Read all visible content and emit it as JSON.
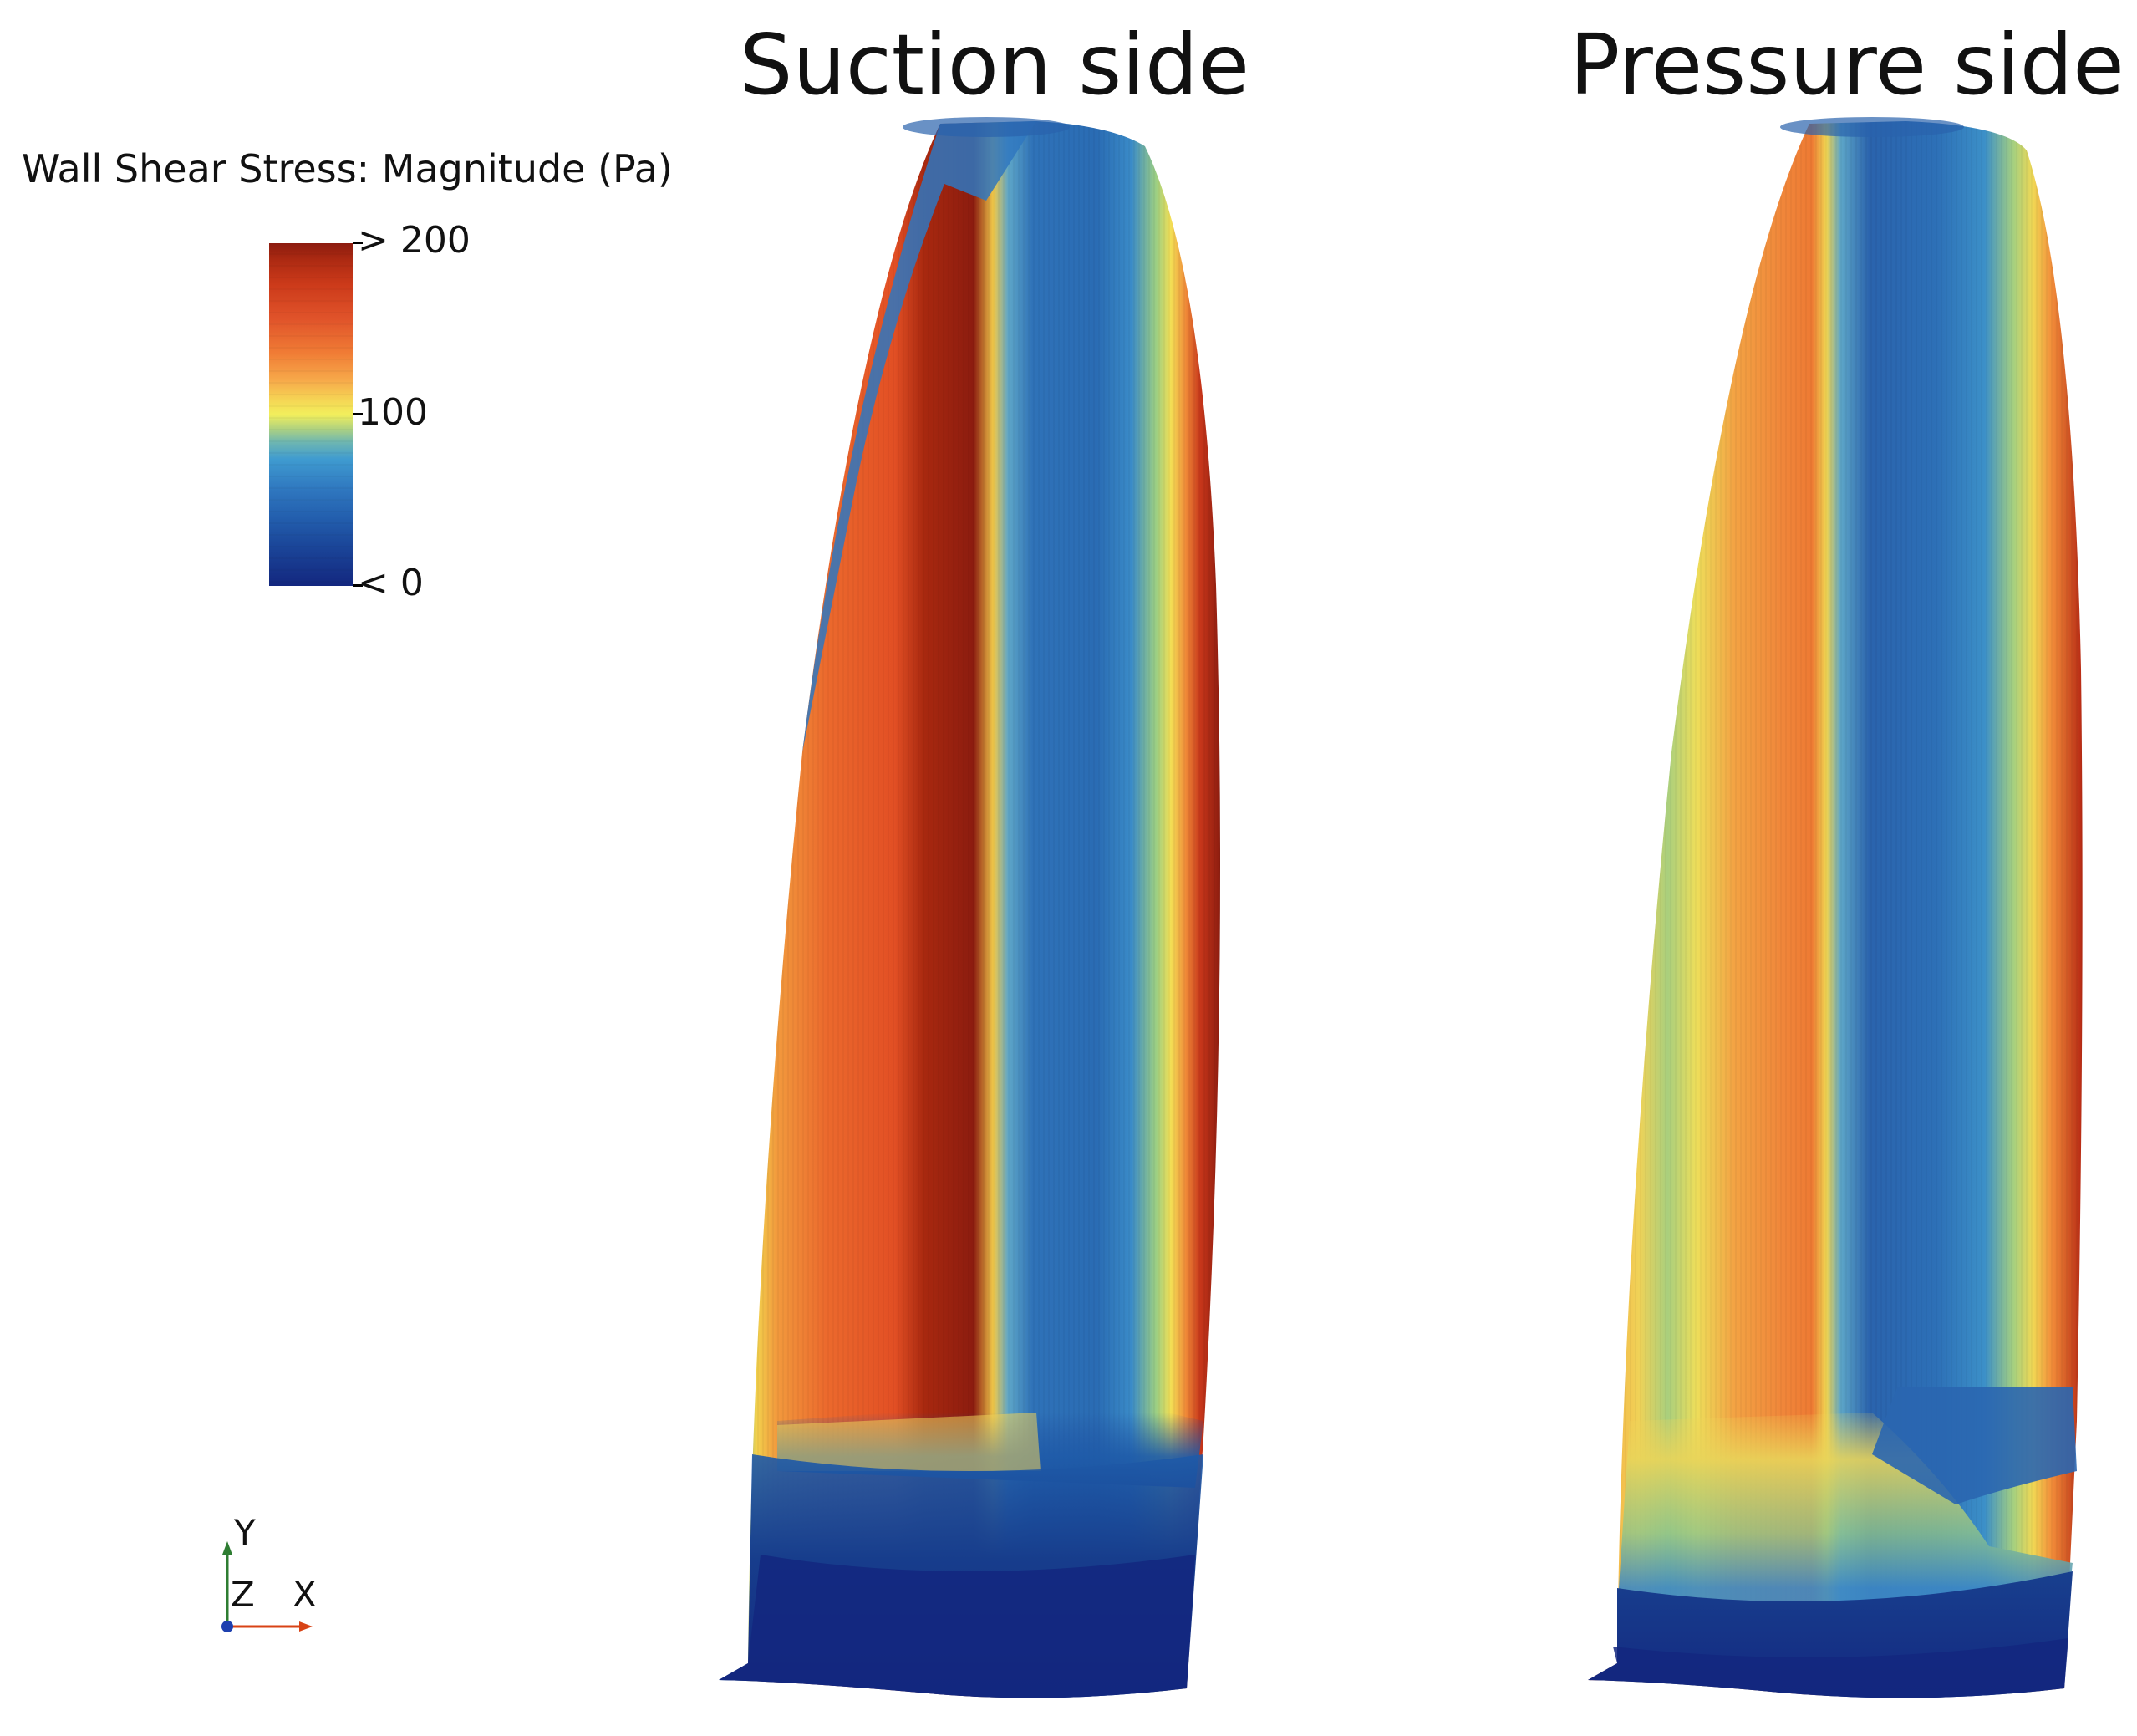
{
  "views": {
    "suction_title": "Suction side",
    "pressure_title": "Pressure side"
  },
  "legend": {
    "title": "Wall Shear Stress: Magnitude (Pa)",
    "max_label": "> 200",
    "mid_label": "100",
    "min_label": "< 0"
  },
  "axes": {
    "y_label": "Y",
    "z_label": "Z",
    "x_label": "X",
    "y_color": "#2e7d32",
    "x_color": "#d84315",
    "z_color": "#1e40af"
  },
  "colors": {
    "dark_red": "#8c1c0f",
    "red_orange": "#e0532a",
    "orange": "#f07c35",
    "yellow": "#f2ef5c",
    "light_green": "#a9cf7d",
    "blue": "#2f77bf",
    "dark_blue": "#13277f"
  }
}
